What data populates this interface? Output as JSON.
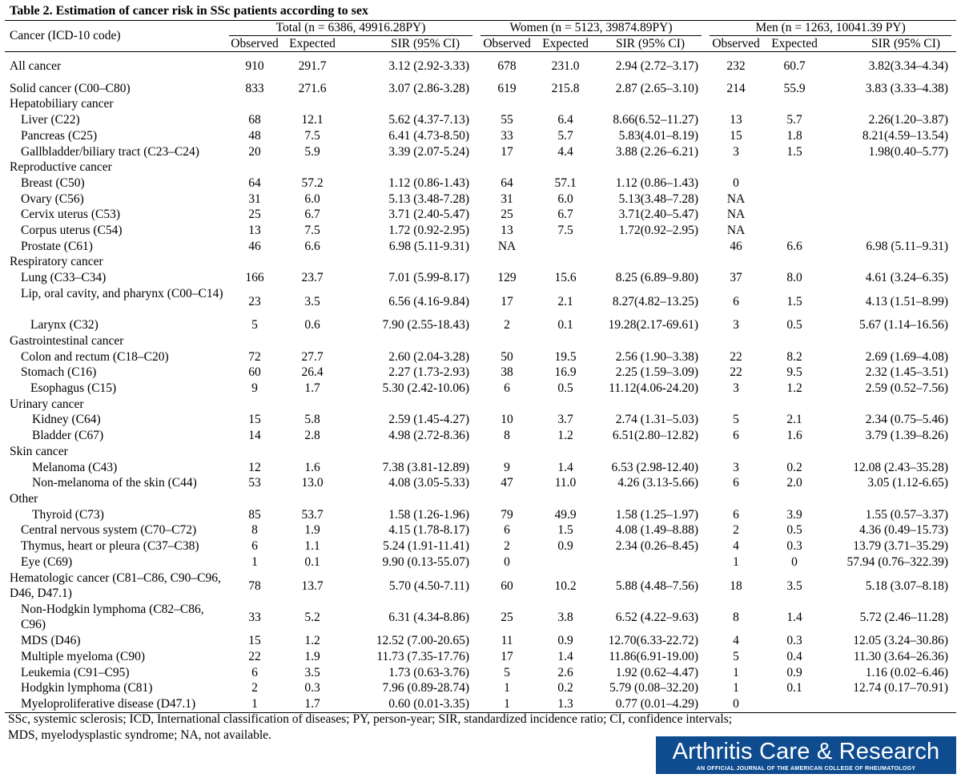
{
  "caption": "Table 2. Estimation of cancer risk in SSc patients according to sex",
  "header": {
    "cancer_col": "Cancer (ICD-10 code)",
    "groups": [
      "Total (n = 6386, 49916.28PY)",
      "Women (n = 5123, 39874.89PY)",
      "Men (n = 1263, 10041.39 PY)"
    ],
    "observed": "Observed",
    "expected": "Expected",
    "sir": "SIR (95% CI)"
  },
  "rows": [
    {
      "gap": true
    },
    {
      "name": "All cancer",
      "bold": true,
      "indent": 0,
      "v": [
        "910",
        "291.7",
        "3.12 (2.92-3.33)",
        "678",
        "231.0",
        "2.94 (2.72–3.17)",
        "232",
        "60.7",
        "3.82(3.34–4.34)"
      ]
    },
    {
      "gap": true
    },
    {
      "name": "Solid cancer (C00–C80)",
      "bold": true,
      "indent": 0,
      "v": [
        "833",
        "271.6",
        "3.07 (2.86-3.28)",
        "619",
        "215.8",
        "2.87 (2.65–3.10)",
        "214",
        "55.9",
        "3.83 (3.33–4.38)"
      ]
    },
    {
      "name": "Hepatobiliary cancer",
      "bold": true,
      "indent": 0,
      "v": [
        "",
        "",
        "",
        "",
        "",
        "",
        "",
        "",
        ""
      ]
    },
    {
      "name": "Liver (C22)",
      "indent": 2,
      "v": [
        "68",
        "12.1",
        "5.62 (4.37-7.13)",
        "55",
        "6.4",
        "8.66(6.52–11.27)",
        "13",
        "5.7",
        "2.26(1.20–3.87)"
      ]
    },
    {
      "name": "Pancreas (C25)",
      "indent": 2,
      "v": [
        "48",
        "7.5",
        "6.41 (4.73-8.50)",
        "33",
        "5.7",
        "5.83(4.01–8.19)",
        "15",
        "1.8",
        "8.21(4.59–13.54)"
      ]
    },
    {
      "name": "Gallbladder/biliary tract (C23–C24)",
      "indent": 2,
      "v": [
        "20",
        "5.9",
        "3.39 (2.07-5.24)",
        "17",
        "4.4",
        "3.88 (2.26–6.21)",
        "3",
        "1.5",
        "1.98(0.40–5.77)"
      ]
    },
    {
      "name": "Reproductive cancer",
      "bold": true,
      "indent": 0,
      "v": [
        "",
        "",
        "",
        "",
        "",
        "",
        "",
        "",
        ""
      ]
    },
    {
      "name": "Breast (C50)",
      "indent": 2,
      "v": [
        "64",
        "57.2",
        "1.12 (0.86-1.43)",
        "64",
        "57.1",
        "1.12 (0.86–1.43)",
        "0",
        "",
        ""
      ]
    },
    {
      "name": "Ovary (C56)",
      "indent": 2,
      "v": [
        "31",
        "6.0",
        "5.13 (3.48-7.28)",
        "31",
        "6.0",
        "5.13(3.48–7.28)",
        "NA",
        "",
        ""
      ]
    },
    {
      "name": "Cervix uterus (C53)",
      "indent": 2,
      "v": [
        "25",
        "6.7",
        "3.71 (2.40-5.47)",
        "25",
        "6.7",
        "3.71(2.40–5.47)",
        "NA",
        "",
        ""
      ]
    },
    {
      "name": "Corpus uterus (C54)",
      "indent": 2,
      "v": [
        "13",
        "7.5",
        "1.72 (0.92-2.95)",
        "13",
        "7.5",
        "1.72(0.92–2.95)",
        "NA",
        "",
        ""
      ]
    },
    {
      "name": "Prostate (C61)",
      "indent": 2,
      "v": [
        "46",
        "6.6",
        "6.98 (5.11-9.31)",
        "NA",
        "",
        "",
        "46",
        "6.6",
        "6.98 (5.11–9.31)"
      ]
    },
    {
      "name": "Respiratory cancer",
      "bold": true,
      "indent": 0,
      "v": [
        "",
        "",
        "",
        "",
        "",
        "",
        "",
        "",
        ""
      ]
    },
    {
      "name": "Lung (C33–C34)",
      "indent": 2,
      "v": [
        "166",
        "23.7",
        "7.01 (5.99-8.17)",
        "129",
        "15.6",
        "8.25 (6.89–9.80)",
        "37",
        "8.0",
        "4.61 (3.24–6.35)"
      ]
    },
    {
      "name": "Lip, oral cavity, and pharynx (C00–C14)",
      "indent": 2,
      "tall": true,
      "v": [
        "23",
        "3.5",
        "6.56 (4.16-9.84)",
        "17",
        "2.1",
        "8.27(4.82–13.25)",
        "6",
        "1.5",
        "4.13 (1.51–8.99)"
      ]
    },
    {
      "name": "Larynx (C32)",
      "indent": 3,
      "v": [
        "5",
        "0.6",
        "7.90 (2.55-18.43)",
        "2",
        "0.1",
        "19.28(2.17-69.61)",
        "3",
        "0.5",
        "5.67 (1.14–16.56)"
      ]
    },
    {
      "name": "Gastrointestinal cancer",
      "bold": true,
      "indent": 0,
      "v": [
        "",
        "",
        "",
        "",
        "",
        "",
        "",
        "",
        ""
      ]
    },
    {
      "name": "Colon and rectum (C18–C20)",
      "indent": 2,
      "v": [
        "72",
        "27.7",
        "2.60 (2.04-3.28)",
        "50",
        "19.5",
        "2.56 (1.90–3.38)",
        "22",
        "8.2",
        "2.69 (1.69–4.08)"
      ]
    },
    {
      "name": "Stomach (C16)",
      "indent": 2,
      "v": [
        "60",
        "26.4",
        "2.27 (1.73-2.93)",
        "38",
        "16.9",
        "2.25 (1.59–3.09)",
        "22",
        "9.5",
        "2.32 (1.45–3.51)"
      ]
    },
    {
      "name": "Esophagus (C15)",
      "indent": 3,
      "v": [
        "9",
        "1.7",
        "5.30 (2.42-10.06)",
        "6",
        "0.5",
        "11.12(4.06-24.20)",
        "3",
        "1.2",
        "2.59 (0.52–7.56)"
      ]
    },
    {
      "name": "Urinary cancer",
      "bold": true,
      "indent": 0,
      "v": [
        "",
        "",
        "",
        "",
        "",
        "",
        "",
        "",
        ""
      ]
    },
    {
      "name": "Kidney (C64)",
      "indent": 4,
      "v": [
        "15",
        "5.8",
        "2.59 (1.45-4.27)",
        "10",
        "3.7",
        "2.74 (1.31–5.03)",
        "5",
        "2.1",
        "2.34 (0.75–5.46)"
      ]
    },
    {
      "name": "Bladder (C67)",
      "indent": 4,
      "v": [
        "14",
        "2.8",
        "4.98 (2.72-8.36)",
        "8",
        "1.2",
        "6.51(2.80–12.82)",
        "6",
        "1.6",
        "3.79 (1.39–8.26)"
      ]
    },
    {
      "name": "Skin cancer",
      "bold": true,
      "indent": 0,
      "v": [
        "",
        "",
        "",
        "",
        "",
        "",
        "",
        "",
        ""
      ]
    },
    {
      "name": "Melanoma (C43)",
      "indent": 4,
      "v": [
        "12",
        "1.6",
        "7.38 (3.81-12.89)",
        "9",
        "1.4",
        "6.53 (2.98-12.40)",
        "3",
        "0.2",
        "12.08 (2.43–35.28)"
      ]
    },
    {
      "name": "Non-melanoma of the skin (C44)",
      "indent": 4,
      "v": [
        "53",
        "13.0",
        "4.08 (3.05-5.33)",
        "47",
        "11.0",
        "4.26 (3.13-5.66)",
        "6",
        "2.0",
        "3.05 (1.12-6.65)"
      ]
    },
    {
      "name": "Other",
      "bold": true,
      "indent": 0,
      "v": [
        "",
        "",
        "",
        "",
        "",
        "",
        "",
        "",
        ""
      ]
    },
    {
      "name": "Thyroid (C73)",
      "indent": 4,
      "v": [
        "85",
        "53.7",
        "1.58 (1.26-1.96)",
        "79",
        "49.9",
        "1.58 (1.25–1.97)",
        "6",
        "3.9",
        "1.55 (0.57–3.37)"
      ]
    },
    {
      "name": "Central nervous system (C70–C72)",
      "indent": 2,
      "v": [
        "8",
        "1.9",
        "4.15 (1.78-8.17)",
        "6",
        "1.5",
        "4.08 (1.49–8.88)",
        "2",
        "0.5",
        "4.36 (0.49–15.73)"
      ]
    },
    {
      "name": "Thymus, heart or pleura (C37–C38)",
      "indent": 2,
      "v": [
        "6",
        "1.1",
        "5.24 (1.91-11.41)",
        "2",
        "0.9",
        "2.34 (0.26–8.45)",
        "4",
        "0.3",
        "13.79 (3.71–35.29)"
      ]
    },
    {
      "name": "Eye (C69)",
      "indent": 2,
      "v": [
        "1",
        "0.1",
        "9.90 (0.13-55.07)",
        "0",
        "",
        "",
        "1",
        "0",
        "57.94 (0.76–322.39)"
      ]
    },
    {
      "name": "Hematologic cancer (C81–C86, C90–C96, D46, D47.1)",
      "bold": true,
      "indent": 0,
      "tall": true,
      "v": [
        "78",
        "13.7",
        "5.70 (4.50-7.11)",
        "60",
        "10.2",
        "5.88 (4.48–7.56)",
        "18",
        "3.5",
        "5.18 (3.07–8.18)"
      ]
    },
    {
      "name": "Non-Hodgkin lymphoma (C82–C86, C96)",
      "indent": 2,
      "tall": true,
      "v": [
        "33",
        "5.2",
        "6.31 (4.34-8.86)",
        "25",
        "3.8",
        "6.52 (4.22–9.63)",
        "8",
        "1.4",
        "5.72 (2.46–11.28)"
      ]
    },
    {
      "name": "MDS (D46)",
      "indent": 2,
      "v": [
        "15",
        "1.2",
        "12.52 (7.00-20.65)",
        "11",
        "0.9",
        "12.70(6.33-22.72)",
        "4",
        "0.3",
        "12.05 (3.24–30.86)"
      ]
    },
    {
      "name": "Multiple myeloma (C90)",
      "indent": 2,
      "v": [
        "22",
        "1.9",
        "11.73 (7.35-17.76)",
        "17",
        "1.4",
        "11.86(6.91-19.00)",
        "5",
        "0.4",
        "11.30 (3.64–26.36)"
      ]
    },
    {
      "name": "Leukemia (C91–C95)",
      "indent": 2,
      "v": [
        "6",
        "3.5",
        "1.73 (0.63-3.76)",
        "5",
        "2.6",
        "1.92 (0.62–4.47)",
        "1",
        "0.9",
        "1.16 (0.02–6.46)"
      ]
    },
    {
      "name": "Hodgkin lymphoma (C81)",
      "indent": 2,
      "v": [
        "2",
        "0.3",
        "7.96 (0.89-28.74)",
        "1",
        "0.2",
        "5.79 (0.08–32.20)",
        "1",
        "0.1",
        "12.74 (0.17–70.91)"
      ]
    },
    {
      "name": "Myeloproliferative disease (D47.1)",
      "indent": 2,
      "last": true,
      "v": [
        "1",
        "1.7",
        "0.60 (0.01-3.35)",
        "1",
        "1.3",
        "0.77 (0.01–4.29)",
        "0",
        "",
        ""
      ]
    }
  ],
  "footnote": [
    "SSc, systemic sclerosis; ICD, International classification of diseases; PY, person-year; SIR, standardized incidence ratio; CI, confidence intervals;",
    "MDS, myelodysplastic syndrome; NA, not available."
  ],
  "logo": {
    "title": "Arthritis Care & Research",
    "subtitle": "AN OFFICIAL JOURNAL OF THE AMERICAN COLLEGE OF RHEUMATOLOGY"
  },
  "colors": {
    "logo_background": "#0e4c8f",
    "logo_text": "#ffffff",
    "rule_lines": "#000000"
  }
}
